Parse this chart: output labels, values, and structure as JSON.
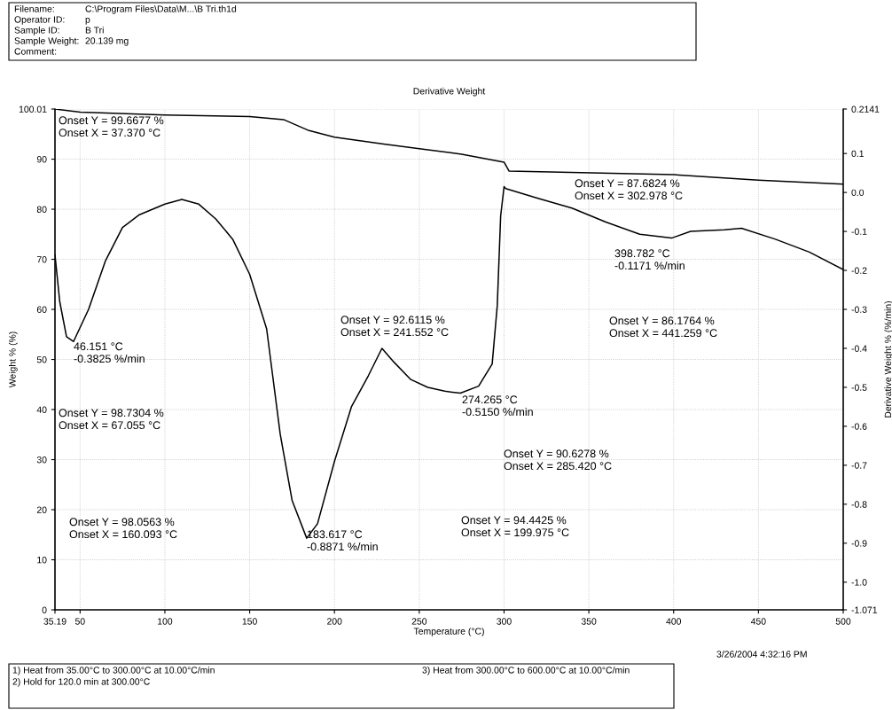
{
  "chart_data": {
    "type": "line",
    "title": "Derivative Weight",
    "xlabel": "Temperature (°C)",
    "ylabel": "Weight % (%)",
    "y2label": "Derivative Weight % (%/min)",
    "xlim": [
      35.19,
      500
    ],
    "xticks": [
      35.19,
      50,
      100,
      150,
      200,
      250,
      300,
      350,
      400,
      450,
      500
    ],
    "ylim": [
      0,
      100.01
    ],
    "yticks": [
      0,
      10,
      20,
      30,
      40,
      50,
      60,
      70,
      80,
      90,
      100.01
    ],
    "y2lim": [
      -1.071,
      0.2141
    ],
    "y2ticks": [
      -1.071,
      {
        "value": -1.0,
        "label": "-1.0"
      },
      -0.9,
      -0.8,
      -0.7,
      -0.6,
      -0.5,
      -0.4,
      -0.3,
      -0.2,
      -0.1,
      {
        "value": 0.0,
        "label": "0.0"
      },
      0.1,
      0.2141
    ],
    "grid": true,
    "legend": false,
    "series": [
      {
        "color": "#000000",
        "x": [
          35.19,
          50,
          100,
          150,
          170,
          185,
          200,
          229,
          250,
          275,
          300,
          303,
          400,
          450,
          500
        ],
        "values": [
          100.0,
          99.4,
          98.8,
          98.5,
          97.9,
          95.7,
          94.4,
          93.0,
          92.1,
          91.0,
          89.4,
          87.6,
          86.9,
          85.8,
          85.0
        ]
      },
      {
        "color": "#000000",
        "axis": "y2",
        "x": [
          35.19,
          38,
          42,
          46.151,
          55,
          65,
          75,
          85,
          100,
          110,
          120,
          130,
          140,
          150,
          160,
          168,
          175,
          183.617,
          190,
          200,
          210,
          220,
          228,
          235,
          245,
          255,
          265,
          274.265,
          285,
          293,
          296,
          298,
          300,
          301,
          320,
          340,
          360,
          380,
          398.782,
          410,
          430,
          440,
          460,
          480,
          500
        ],
        "values": [
          -0.16,
          -0.28,
          -0.37,
          -0.3825,
          -0.3,
          -0.175,
          -0.09,
          -0.057,
          -0.03,
          -0.018,
          -0.03,
          -0.068,
          -0.12,
          -0.21,
          -0.35,
          -0.62,
          -0.79,
          -0.8871,
          -0.85,
          -0.69,
          -0.55,
          -0.47,
          -0.4,
          -0.435,
          -0.48,
          -0.5,
          -0.51,
          -0.515,
          -0.497,
          -0.44,
          -0.29,
          -0.06,
          0.015,
          0.01,
          -0.015,
          -0.04,
          -0.076,
          -0.107,
          -0.1171,
          -0.1,
          -0.096,
          -0.092,
          -0.12,
          -0.153,
          -0.198
        ]
      }
    ],
    "annotations": [
      "Filename:",
      "C:\\Program Files\\Data\\M...\\B Tri.th1d",
      "Operator ID:",
      "p",
      "Sample ID:",
      "B Tri",
      "Sample Weight:",
      "20.139 mg",
      "Comment:",
      "Onset Y = 99.6677 %\nOnset X = 37.370 °C",
      "Onset Y = 98.7304 %\nOnset X = 67.055 °C",
      "Onset Y = 98.0563 %\nOnset X = 160.093 °C",
      "Onset Y = 92.6115 %\nOnset X = 241.552 °C",
      "Onset Y = 94.4425 %\nOnset X = 199.975 °C",
      "Onset Y = 90.6278 %\nOnset X = 285.420 °C",
      "Onset Y = 87.6824 %\nOnset X = 302.978 °C",
      "Onset Y = 86.1764 %\nOnset X = 441.259 °C",
      "46.151 °C\n-0.3825 %/min",
      "183.617 °C\n-0.8871 %/min",
      "274.265 °C\n-0.5150 %/min",
      "398.782 °C\n-0.1171 %/min",
      "1) Heat from 35.00°C to 300.00°C at 10.00°C/min",
      "2) Hold for 120.0 min at 300.00°C",
      "3) Heat from 300.00°C to 600.00°C at 10.00°C/min",
      "3/26/2004 4:32:16 PM"
    ]
  }
}
